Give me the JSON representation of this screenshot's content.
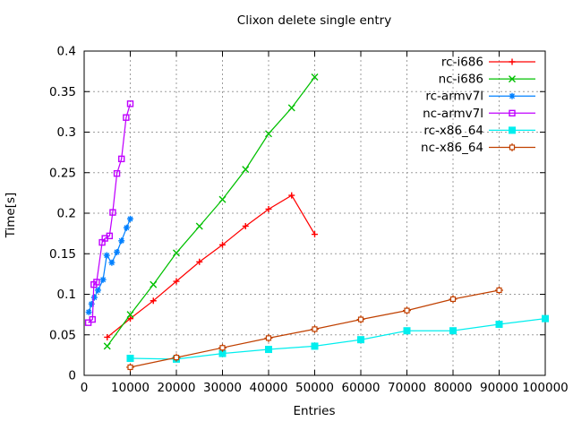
{
  "window": {
    "background_color": "#ffffff",
    "border_color": "#000000",
    "grid_color": "#9d9d9d"
  },
  "chart_data": {
    "type": "line",
    "title": "Clixon delete single entry",
    "xlabel": "Entries",
    "ylabel": "Time[s]",
    "xlim": [
      0,
      100000
    ],
    "ylim": [
      0,
      0.4
    ],
    "x_ticks": [
      0,
      10000,
      20000,
      30000,
      40000,
      50000,
      60000,
      70000,
      80000,
      90000,
      100000
    ],
    "x_tick_labels": [
      "0",
      "10000",
      "20000",
      "30000",
      "40000",
      "50000",
      "60000",
      "70000",
      "80000",
      "90000",
      "100000"
    ],
    "y_ticks": [
      0,
      0.05,
      0.1,
      0.15,
      0.2,
      0.25,
      0.3,
      0.35,
      0.4
    ],
    "y_tick_labels": [
      "0",
      "0.05",
      "0.1",
      "0.15",
      "0.2",
      "0.25",
      "0.3",
      "0.35",
      "0.4"
    ],
    "grid": true,
    "grid_style": "dashed",
    "legend_position": "top-right-inside",
    "series": [
      {
        "name": "rc-i686",
        "color": "#ff0000",
        "marker": "plus",
        "x": [
          5000,
          10000,
          15000,
          20000,
          25000,
          30000,
          35000,
          40000,
          45000,
          50000
        ],
        "y": [
          0.047,
          0.07,
          0.092,
          0.116,
          0.14,
          0.161,
          0.184,
          0.205,
          0.222,
          0.174
        ]
      },
      {
        "name": "nc-i686",
        "color": "#00c000",
        "marker": "cross",
        "x": [
          5000,
          10000,
          15000,
          20000,
          25000,
          30000,
          35000,
          40000,
          45000,
          50000
        ],
        "y": [
          0.036,
          0.075,
          0.112,
          0.151,
          0.184,
          0.217,
          0.254,
          0.298,
          0.33,
          0.368
        ]
      },
      {
        "name": "rc-armv7l",
        "color": "#0080ff",
        "marker": "asterisk",
        "x": [
          1000,
          1600,
          2200,
          3000,
          4100,
          4900,
          6000,
          7100,
          8100,
          9200,
          10000
        ],
        "y": [
          0.078,
          0.088,
          0.096,
          0.105,
          0.118,
          0.148,
          0.139,
          0.152,
          0.166,
          0.182,
          0.193
        ]
      },
      {
        "name": "nc-armv7l",
        "color": "#c000ff",
        "marker": "square-open",
        "x": [
          900,
          1800,
          2100,
          2700,
          3900,
          4500,
          5500,
          6200,
          7100,
          8100,
          9100,
          10000
        ],
        "y": [
          0.065,
          0.069,
          0.112,
          0.115,
          0.164,
          0.169,
          0.172,
          0.201,
          0.249,
          0.267,
          0.318,
          0.335
        ]
      },
      {
        "name": "rc-x86_64",
        "color": "#00eeee",
        "marker": "square-filled",
        "x": [
          10000,
          20000,
          30000,
          40000,
          50000,
          60000,
          70000,
          80000,
          90000,
          100000
        ],
        "y": [
          0.021,
          0.02,
          0.027,
          0.032,
          0.036,
          0.044,
          0.055,
          0.055,
          0.063,
          0.07
        ]
      },
      {
        "name": "nc-x86_64",
        "color": "#c04000",
        "marker": "square-plus",
        "x": [
          10000,
          20000,
          30000,
          40000,
          50000,
          60000,
          70000,
          80000,
          90000
        ],
        "y": [
          0.01,
          0.022,
          0.034,
          0.046,
          0.057,
          0.069,
          0.08,
          0.094,
          0.105
        ]
      }
    ]
  }
}
